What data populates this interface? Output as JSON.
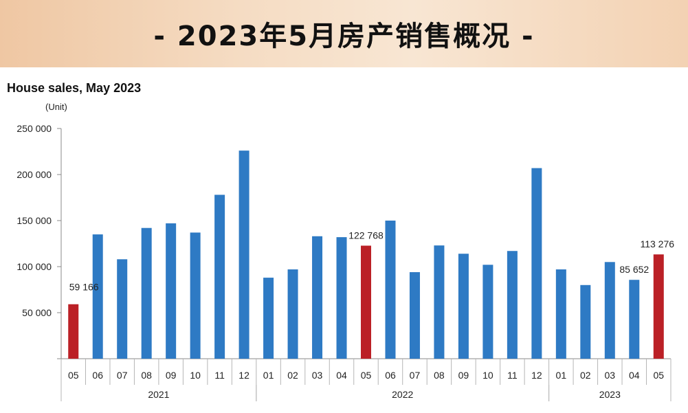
{
  "banner": {
    "title": "- 2023年5月房产销售概况 -"
  },
  "chart_data": {
    "type": "bar",
    "title": "House sales, May 2023",
    "ylabel": "(Unit)",
    "xlabel": "",
    "ylim": [
      0,
      250000
    ],
    "yticks": [
      {
        "value": 0,
        "label": ""
      },
      {
        "value": 50000,
        "label": "50 000"
      },
      {
        "value": 100000,
        "label": "100 000"
      },
      {
        "value": 150000,
        "label": "150 000"
      },
      {
        "value": 200000,
        "label": "200 000"
      },
      {
        "value": 250000,
        "label": "250 000"
      }
    ],
    "categories": [
      "05",
      "06",
      "07",
      "08",
      "09",
      "10",
      "11",
      "12",
      "01",
      "02",
      "03",
      "04",
      "05",
      "06",
      "07",
      "08",
      "09",
      "10",
      "11",
      "12",
      "01",
      "02",
      "03",
      "04",
      "05"
    ],
    "values": [
      59166,
      135000,
      108000,
      142000,
      147000,
      137000,
      178000,
      226000,
      88000,
      97000,
      133000,
      132000,
      122768,
      150000,
      94000,
      123000,
      114000,
      102000,
      117000,
      207000,
      97000,
      80000,
      105000,
      85652,
      113276
    ],
    "highlight": [
      true,
      false,
      false,
      false,
      false,
      false,
      false,
      false,
      false,
      false,
      false,
      false,
      true,
      false,
      false,
      false,
      false,
      false,
      false,
      false,
      false,
      false,
      false,
      false,
      true
    ],
    "data_labels": [
      {
        "index": 0,
        "text": "59 166"
      },
      {
        "index": 12,
        "text": "122 768"
      },
      {
        "index": 23,
        "text": "85 652"
      },
      {
        "index": 24,
        "text": "113 276"
      }
    ],
    "groups": [
      {
        "label": "2021",
        "start": 0,
        "end": 7
      },
      {
        "label": "2022",
        "start": 8,
        "end": 19
      },
      {
        "label": "2023",
        "start": 20,
        "end": 24
      }
    ],
    "colors": {
      "normal": "#2e7ac4",
      "highlight": "#bb2026",
      "axis": "#888888"
    },
    "grid": false,
    "legend": "none"
  }
}
